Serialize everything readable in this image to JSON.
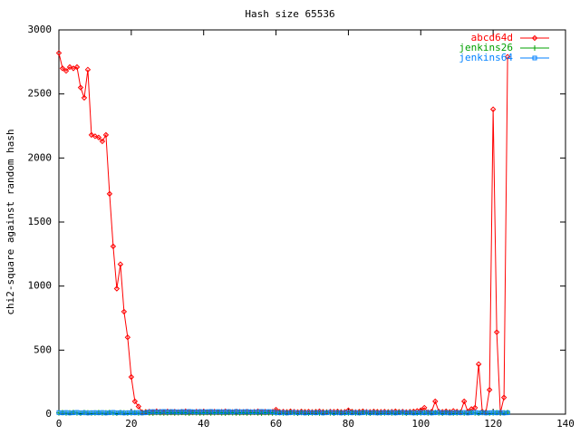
{
  "chart_data": {
    "type": "line",
    "title": "Hash size 65536",
    "y_label": "chi2-square against random hash",
    "x": [
      0,
      1,
      2,
      3,
      4,
      5,
      6,
      7,
      8,
      9,
      10,
      11,
      12,
      13,
      14,
      15,
      16,
      17,
      18,
      19,
      20,
      21,
      22,
      23,
      24,
      25,
      26,
      27,
      28,
      29,
      30,
      31,
      32,
      33,
      34,
      35,
      36,
      37,
      38,
      39,
      40,
      41,
      42,
      43,
      44,
      45,
      46,
      47,
      48,
      49,
      50,
      51,
      52,
      53,
      54,
      55,
      56,
      57,
      58,
      59,
      60,
      61,
      62,
      63,
      64,
      65,
      66,
      67,
      68,
      69,
      70,
      71,
      72,
      73,
      74,
      75,
      76,
      77,
      78,
      79,
      80,
      81,
      82,
      83,
      84,
      85,
      86,
      87,
      88,
      89,
      90,
      91,
      92,
      93,
      94,
      95,
      96,
      97,
      98,
      99,
      100,
      101,
      102,
      103,
      104,
      105,
      106,
      107,
      108,
      109,
      110,
      111,
      112,
      113,
      114,
      115,
      116,
      117,
      118,
      119,
      120,
      121,
      122,
      123,
      124
    ],
    "series": [
      {
        "name": "abcd64d",
        "color": "#ff0000",
        "marker": "diamond",
        "values": [
          2820,
          2700,
          2680,
          2710,
          2700,
          2710,
          2550,
          2470,
          2690,
          2180,
          2170,
          2160,
          2130,
          2180,
          1720,
          1310,
          980,
          1170,
          800,
          600,
          290,
          100,
          60,
          15,
          18,
          20,
          17,
          22,
          19,
          16,
          21,
          18,
          20,
          17,
          19,
          22,
          18,
          16,
          20,
          19,
          21,
          17,
          18,
          20,
          16,
          19,
          22,
          18,
          17,
          21,
          19,
          18,
          20,
          17,
          19,
          22,
          18,
          20,
          16,
          19,
          35,
          18,
          20,
          17,
          22,
          19,
          16,
          21,
          18,
          20,
          17,
          19,
          22,
          18,
          16,
          20,
          19,
          21,
          17,
          18,
          30,
          20,
          16,
          19,
          22,
          18,
          17,
          21,
          19,
          18,
          20,
          17,
          19,
          22,
          18,
          20,
          16,
          19,
          21,
          25,
          30,
          50,
          15,
          20,
          100,
          20,
          18,
          22,
          17,
          25,
          20,
          15,
          100,
          20,
          40,
          50,
          390,
          20,
          15,
          190,
          2380,
          640,
          10,
          130,
          2790
        ]
      },
      {
        "name": "jenkins26",
        "color": "#00a000",
        "marker": "plus",
        "values": [
          10,
          12,
          9,
          11,
          13,
          10,
          8,
          12,
          11,
          9,
          10,
          12,
          9,
          11,
          13,
          10,
          8,
          12,
          11,
          9,
          10,
          12,
          9,
          11,
          13,
          10,
          8,
          12,
          11,
          9,
          10,
          12,
          9,
          11,
          13,
          10,
          8,
          12,
          11,
          9,
          10,
          12,
          9,
          11,
          13,
          10,
          8,
          12,
          11,
          9,
          10,
          12,
          9,
          11,
          13,
          10,
          8,
          12,
          11,
          9,
          10,
          12,
          9,
          11,
          13,
          10,
          8,
          12,
          11,
          9,
          10,
          12,
          9,
          11,
          13,
          10,
          8,
          12,
          11,
          9,
          10,
          12,
          9,
          11,
          13,
          10,
          8,
          12,
          11,
          9,
          10,
          12,
          9,
          11,
          13,
          10,
          8,
          12,
          11,
          9,
          10,
          12,
          9,
          11,
          13,
          10,
          8,
          12,
          11,
          9,
          10,
          12,
          9,
          11,
          13,
          10,
          8,
          12,
          11,
          9,
          10,
          12,
          9,
          11,
          13
        ]
      },
      {
        "name": "jenkins64",
        "color": "#0080ff",
        "marker": "square",
        "values": [
          12,
          10,
          13,
          9,
          11,
          14,
          10,
          12,
          9,
          11,
          12,
          10,
          13,
          9,
          11,
          14,
          10,
          12,
          9,
          11,
          12,
          10,
          13,
          9,
          11,
          18,
          20,
          17,
          19,
          21,
          18,
          20,
          19,
          17,
          20,
          18,
          21,
          19,
          17,
          20,
          18,
          19,
          21,
          17,
          20,
          18,
          19,
          20,
          17,
          21,
          18,
          19,
          20,
          18,
          17,
          19,
          21,
          18,
          20,
          17,
          12,
          10,
          13,
          9,
          11,
          14,
          10,
          12,
          9,
          11,
          12,
          10,
          13,
          9,
          11,
          14,
          10,
          12,
          9,
          11,
          12,
          10,
          13,
          9,
          11,
          14,
          10,
          12,
          9,
          11,
          12,
          10,
          13,
          9,
          11,
          14,
          10,
          12,
          9,
          11,
          12,
          10,
          13,
          9,
          11,
          14,
          10,
          12,
          9,
          11,
          12,
          10,
          13,
          9,
          11,
          14,
          10,
          12,
          9,
          11,
          12,
          10,
          13,
          9,
          11
        ]
      }
    ],
    "xlim": [
      0,
      140
    ],
    "xticks": [
      0,
      20,
      40,
      60,
      80,
      100,
      120,
      140
    ],
    "ylim": [
      0,
      3000
    ],
    "yticks": [
      0,
      500,
      1000,
      1500,
      2000,
      2500,
      3000
    ],
    "grid": false,
    "legend": "upper right"
  }
}
